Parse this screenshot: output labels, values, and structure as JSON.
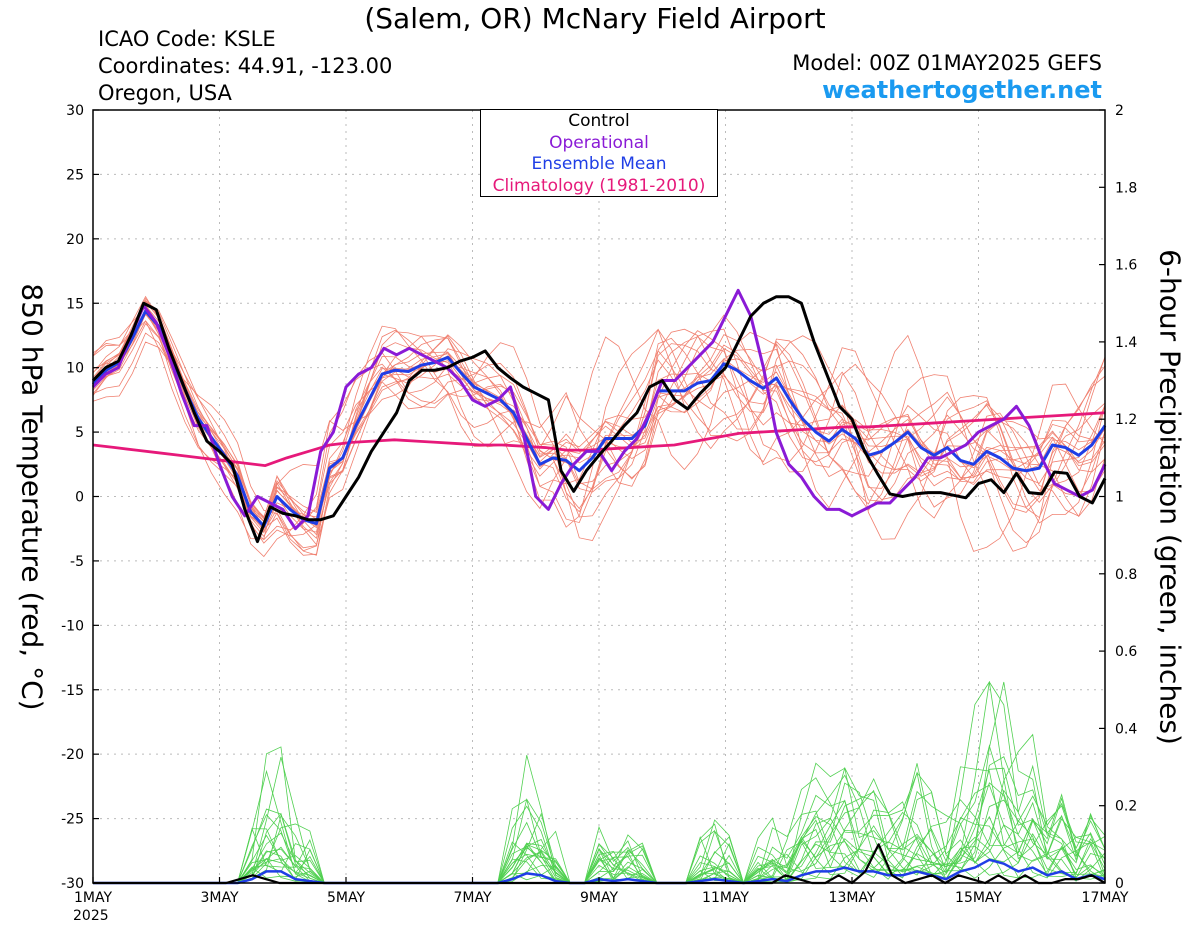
{
  "header": {
    "title": "(Salem, OR) McNary Field Airport",
    "icao": "ICAO Code: KSLE",
    "coordinates": "Coordinates: 44.91, -123.00",
    "region": "Oregon, USA",
    "model": "Model: 00Z 01MAY2025 GEFS",
    "site": "weathertogether.net"
  },
  "chart_data": {
    "type": "line",
    "title": "(Salem, OR) McNary Field Airport",
    "ylabel_left": "850 hPa Temperature (red, °C)",
    "ylabel_right": "6-hour Precipitation (green, inches)",
    "ylim_left": [
      -30,
      30
    ],
    "ylim_right": [
      0,
      2
    ],
    "yticks_left": [
      30,
      25,
      20,
      15,
      10,
      5,
      0,
      -5,
      -10,
      -15,
      -20,
      -25,
      -30
    ],
    "yticks_right": [
      "2",
      "1.8",
      "1.6",
      "1.4",
      "1.2",
      "1",
      "0.8",
      "0.6",
      "0.4",
      "0.2",
      "0"
    ],
    "xlim": [
      0,
      64
    ],
    "x_unit": "6-hour steps from 00Z 1MAY2025",
    "xticks": [
      {
        "x": 0,
        "label": "1MAY",
        "sub": "2025"
      },
      {
        "x": 8,
        "label": "3MAY"
      },
      {
        "x": 16,
        "label": "5MAY"
      },
      {
        "x": 24,
        "label": "7MAY"
      },
      {
        "x": 32,
        "label": "9MAY"
      },
      {
        "x": 40,
        "label": "11MAY"
      },
      {
        "x": 48,
        "label": "13MAY"
      },
      {
        "x": 56,
        "label": "15MAY"
      },
      {
        "x": 64,
        "label": "17MAY"
      }
    ],
    "grid": true,
    "legend_position": "top-center",
    "legend": [
      {
        "label": "Control",
        "color": "#000000"
      },
      {
        "label": "Operational",
        "color": "#8a1ad6"
      },
      {
        "label": "Ensemble Mean",
        "color": "#1f3ee6"
      },
      {
        "label": "Climatology (1981-2010)",
        "color": "#e6197a"
      }
    ],
    "colors": {
      "members_temp": "#f08070",
      "members_precip": "#50d050",
      "control": "#000000",
      "operational": "#8a1ad6",
      "mean": "#1f3ee6",
      "climatology": "#e6197a"
    },
    "series": [
      {
        "name": "Control",
        "axis": "temp",
        "values": [
          9,
          10,
          10.5,
          12.5,
          15,
          14.5,
          11.5,
          9,
          6.5,
          4.3,
          3.5,
          2.5,
          -1,
          -3.5,
          -0.8,
          -1.3,
          -1.5,
          -1.8,
          -1.8,
          -1.5,
          0,
          1.5,
          3.5,
          5,
          6.5,
          9,
          9.8,
          9.8,
          10,
          10.5,
          10.8,
          11.3,
          10,
          9.2,
          8.5,
          8,
          7.5,
          2,
          0.4,
          2,
          3.2,
          4.3,
          5.5,
          6.5,
          8.5,
          9,
          7.5,
          6.8,
          8,
          9,
          10,
          12,
          14,
          15,
          15.5,
          15.5,
          15,
          12,
          9.5,
          7,
          6,
          3.5,
          1.8,
          0.2,
          0,
          0.2,
          0.3,
          0.3,
          0.1,
          -0.1,
          1,
          1.3,
          0.3,
          1.8,
          0.3,
          0.2,
          1.9,
          1.8,
          0,
          -0.5,
          1.4
        ]
      },
      {
        "name": "Operational",
        "axis": "temp",
        "values": [
          8.5,
          9.5,
          10,
          12.5,
          14.8,
          13.5,
          11,
          8,
          5.5,
          5.5,
          2.5,
          0,
          -1.5,
          0,
          -0.5,
          -1,
          -2.5,
          -1.5,
          3.5,
          5,
          8.5,
          9.5,
          10,
          11.5,
          11,
          11.5,
          11,
          10.5,
          10,
          9,
          7.5,
          7,
          7.5,
          8.5,
          5,
          0,
          -1,
          1,
          2.5,
          3.5,
          3.5,
          2,
          3.5,
          4.5,
          6.5,
          9,
          9,
          10,
          11,
          12,
          14,
          16,
          14,
          10,
          5,
          2.5,
          1.5,
          0,
          -1,
          -1,
          -1.5,
          -1,
          -0.5,
          -0.5,
          0.5,
          1.5,
          3,
          3,
          3.5,
          4,
          5,
          5.5,
          6,
          7,
          5.5,
          3,
          1,
          0.5,
          0,
          0.5,
          2.5
        ]
      },
      {
        "name": "Ensemble Mean",
        "axis": "temp",
        "values": [
          8.7,
          9.8,
          10.4,
          12.3,
          14.4,
          13.2,
          10.7,
          8.3,
          6.1,
          4.6,
          3.2,
          1.6,
          -1.2,
          -2.3,
          0,
          -1,
          -1.8,
          -2.1,
          2.2,
          3,
          5.5,
          7.5,
          9.5,
          9.8,
          9.7,
          10.2,
          10.4,
          10.8,
          9.6,
          8.5,
          8,
          7.5,
          6.5,
          4.5,
          2.5,
          3,
          2.8,
          2,
          3,
          4.5,
          4.5,
          4.5,
          5.5,
          8.2,
          8.2,
          8.2,
          8.8,
          9,
          10.3,
          9.8,
          9,
          8.4,
          9.2,
          7.5,
          6,
          5,
          4.3,
          5.2,
          4.5,
          3.2,
          3.5,
          4.2,
          5,
          3.8,
          3.2,
          3.8,
          2.8,
          2.5,
          3.5,
          3,
          2.2,
          2,
          2.2,
          4,
          3.8,
          3.2,
          4,
          5.5
        ]
      },
      {
        "name": "Climatology (1981-2010)",
        "axis": "temp",
        "values": [
          4,
          3.8,
          3.6,
          3.4,
          3.2,
          3,
          2.8,
          2.6,
          2.4,
          3,
          3.5,
          4,
          4.2,
          4.3,
          4.4,
          4.3,
          4.2,
          4.1,
          4,
          4,
          3.9,
          3.8,
          3.6,
          3.6,
          3.7,
          3.8,
          3.9,
          4,
          4.3,
          4.6,
          4.9,
          5,
          5.1,
          5.2,
          5.3,
          5.4,
          5.4,
          5.5,
          5.6,
          5.7,
          5.8,
          5.9,
          6,
          6.1,
          6.2,
          6.3,
          6.4,
          6.5
        ]
      },
      {
        "name": "Control precip",
        "axis": "precip",
        "values": [
          0,
          0,
          0,
          0,
          0,
          0,
          0,
          0,
          0,
          0,
          0,
          0.01,
          0.02,
          0.01,
          0,
          0,
          0,
          0,
          0,
          0,
          0,
          0,
          0,
          0,
          0,
          0,
          0,
          0,
          0,
          0,
          0,
          0,
          0,
          0,
          0,
          0,
          0,
          0,
          0,
          0,
          0,
          0,
          0,
          0,
          0,
          0,
          0,
          0,
          0,
          0,
          0,
          0,
          0.02,
          0.01,
          0,
          0,
          0.02,
          0,
          0.03,
          0.1,
          0.02,
          0,
          0.01,
          0.02,
          0,
          0.02,
          0.01,
          0,
          0.02,
          0,
          0.02,
          0,
          0,
          0.01,
          0.01,
          0.02,
          0
        ]
      },
      {
        "name": "Mean precip",
        "axis": "precip",
        "values": [
          0,
          0,
          0,
          0,
          0,
          0,
          0,
          0,
          0,
          0,
          0,
          0.01,
          0.03,
          0.03,
          0.01,
          0.005,
          0,
          0,
          0,
          0,
          0,
          0,
          0,
          0,
          0,
          0,
          0,
          0,
          0,
          0.01,
          0.025,
          0.02,
          0.005,
          0,
          0,
          0.01,
          0.005,
          0.01,
          0.005,
          0,
          0,
          0,
          0.005,
          0.01,
          0.005,
          0,
          0.005,
          0.01,
          0.005,
          0.02,
          0.03,
          0.03,
          0.04,
          0.03,
          0.03,
          0.02,
          0.02,
          0.03,
          0.02,
          0.01,
          0.03,
          0.04,
          0.06,
          0.05,
          0.03,
          0.04,
          0.02,
          0.03,
          0.01,
          0.02,
          0.01
        ]
      }
    ]
  }
}
